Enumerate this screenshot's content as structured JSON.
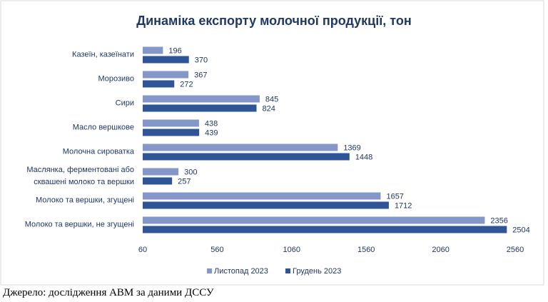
{
  "chart_data": {
    "type": "bar",
    "orientation": "horizontal",
    "title": "Динаміка експорту молочної продукції, тон",
    "categories": [
      "Казеїн, казеїнати",
      "Морозиво",
      "Сири",
      "Масло вершкове",
      "Молочна сироватка",
      "Маслянка, ферментовані або\nсквашені молоко та вершки",
      "Молоко та вершки, згущені",
      "Молоко та вершки, не згущені"
    ],
    "series": [
      {
        "name": "Листопад 2023",
        "color": "#8497c8",
        "values": [
          196,
          367,
          845,
          438,
          1369,
          300,
          1657,
          2356
        ]
      },
      {
        "name": "Грудень 2023",
        "color": "#2f5597",
        "values": [
          370,
          272,
          824,
          439,
          1448,
          257,
          1712,
          2504
        ]
      }
    ],
    "xlim": [
      60,
      2560
    ],
    "xticks": [
      60,
      560,
      1060,
      1560,
      2060,
      2560
    ],
    "grid": false,
    "legend": "bottom",
    "source": "Джерело: дослідження АВМ за даними ДССУ"
  }
}
